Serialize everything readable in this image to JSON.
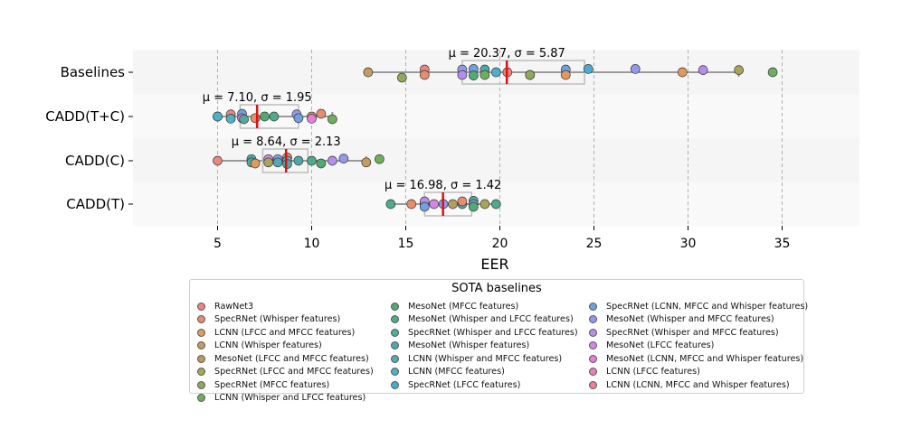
{
  "chart_data": {
    "type": "scatter",
    "xlabel": "EER",
    "xlim": [
      0.5,
      39.0
    ],
    "xticks": [
      5,
      10,
      15,
      20,
      25,
      30,
      35
    ],
    "categories": [
      "Baselines",
      "CADD(T+C)",
      "CADD(C)",
      "CADD(T)"
    ],
    "grid": "x-dashed",
    "groups": [
      {
        "name": "Baselines",
        "stat_label": "μ = 20.37, σ = 5.87",
        "mean": 20.37,
        "std": 5.87,
        "box": {
          "q1": 18.0,
          "q3": 24.5,
          "whisker_low": 13.0,
          "whisker_high": 32.7
        },
        "points": [
          {
            "x": 13.0,
            "c": 4,
            "dy": 0
          },
          {
            "x": 14.8,
            "c": 7,
            "dy": 1
          },
          {
            "x": 16.0,
            "c": 1,
            "dy": -0.5
          },
          {
            "x": 16.0,
            "c": 2,
            "dy": 0.5
          },
          {
            "x": 18.0,
            "c": 17,
            "dy": -0.5
          },
          {
            "x": 18.0,
            "c": 18,
            "dy": 0.5
          },
          {
            "x": 18.6,
            "c": 16,
            "dy": -0.6
          },
          {
            "x": 18.6,
            "c": 9,
            "dy": 0.6
          },
          {
            "x": 19.2,
            "c": 12,
            "dy": -0.5
          },
          {
            "x": 19.2,
            "c": 8,
            "dy": 0.5
          },
          {
            "x": 19.8,
            "c": 14,
            "dy": 0
          },
          {
            "x": 20.4,
            "c": 1,
            "dy": 0
          },
          {
            "x": 21.6,
            "c": 6,
            "dy": 0.5
          },
          {
            "x": 21.6,
            "c": 7,
            "dy": 0.5
          },
          {
            "x": 23.5,
            "c": 16,
            "dy": -0.5
          },
          {
            "x": 23.5,
            "c": 3,
            "dy": 0.5
          },
          {
            "x": 24.7,
            "c": 15,
            "dy": -0.6
          },
          {
            "x": 27.2,
            "c": 17,
            "dy": -0.6
          },
          {
            "x": 29.7,
            "c": 3,
            "dy": 0
          },
          {
            "x": 30.8,
            "c": 18,
            "dy": -0.4
          },
          {
            "x": 32.7,
            "c": 6,
            "dy": -0.4
          },
          {
            "x": 34.5,
            "c": 8,
            "dy": 0
          }
        ]
      },
      {
        "name": "CADD(T+C)",
        "stat_label": "μ = 7.10, σ = 1.95",
        "mean": 7.1,
        "std": 1.95,
        "box": {
          "q1": 6.2,
          "q3": 9.3,
          "whisker_low": 5.0,
          "whisker_high": 11.1
        },
        "points": [
          {
            "x": 5.0,
            "c": 11,
            "dy": 0
          },
          {
            "x": 5.0,
            "c": 14,
            "dy": 0
          },
          {
            "x": 5.7,
            "c": 1,
            "dy": -0.4
          },
          {
            "x": 5.7,
            "c": 14,
            "dy": 0.4
          },
          {
            "x": 6.3,
            "c": 16,
            "dy": -0.5
          },
          {
            "x": 6.3,
            "c": 20,
            "dy": 0.3
          },
          {
            "x": 6.4,
            "c": 11,
            "dy": 0.5
          },
          {
            "x": 7.0,
            "c": 2,
            "dy": 0.3
          },
          {
            "x": 7.5,
            "c": 9,
            "dy": 0
          },
          {
            "x": 8.0,
            "c": 10,
            "dy": 0
          },
          {
            "x": 9.2,
            "c": 17,
            "dy": -0.4
          },
          {
            "x": 9.3,
            "c": 16,
            "dy": 0.3
          },
          {
            "x": 10.0,
            "c": 3,
            "dy": 0
          },
          {
            "x": 10.0,
            "c": 20,
            "dy": 0.4
          },
          {
            "x": 10.5,
            "c": 2,
            "dy": -0.5
          },
          {
            "x": 11.1,
            "c": 8,
            "dy": 0.5
          }
        ]
      },
      {
        "name": "CADD(C)",
        "stat_label": "μ = 8.64, σ = 2.13",
        "mean": 8.64,
        "std": 2.13,
        "box": {
          "q1": 7.4,
          "q3": 9.8,
          "whisker_low": 5.0,
          "whisker_high": 12.9
        },
        "points": [
          {
            "x": 5.0,
            "c": 1,
            "dy": 0
          },
          {
            "x": 6.8,
            "c": 12,
            "dy": -0.3
          },
          {
            "x": 6.8,
            "c": 11,
            "dy": 0.3
          },
          {
            "x": 7.0,
            "c": 3,
            "dy": 0.5
          },
          {
            "x": 7.7,
            "c": 19,
            "dy": -0.3
          },
          {
            "x": 7.7,
            "c": 6,
            "dy": 0.3
          },
          {
            "x": 8.2,
            "c": 17,
            "dy": -0.3
          },
          {
            "x": 8.2,
            "c": 13,
            "dy": 0.3
          },
          {
            "x": 8.7,
            "c": 4,
            "dy": -0.6
          },
          {
            "x": 8.7,
            "c": 16,
            "dy": 0
          },
          {
            "x": 8.7,
            "c": 12,
            "dy": 0.6
          },
          {
            "x": 9.3,
            "c": 12,
            "dy": 0
          },
          {
            "x": 10.0,
            "c": 10,
            "dy": 0
          },
          {
            "x": 10.5,
            "c": 9,
            "dy": 0.5
          },
          {
            "x": 11.1,
            "c": 18,
            "dy": 0
          },
          {
            "x": 11.7,
            "c": 17,
            "dy": -0.4
          },
          {
            "x": 12.9,
            "c": 4,
            "dy": 0.3
          },
          {
            "x": 13.6,
            "c": 8,
            "dy": -0.3
          }
        ]
      },
      {
        "name": "CADD(T)",
        "stat_label": "μ = 16.98, σ = 1.42",
        "mean": 16.98,
        "std": 1.42,
        "box": {
          "q1": 16.0,
          "q3": 18.5,
          "whisker_low": 14.2,
          "whisker_high": 19.8
        },
        "points": [
          {
            "x": 14.2,
            "c": 10,
            "dy": 0
          },
          {
            "x": 15.3,
            "c": 2,
            "dy": 0
          },
          {
            "x": 16.0,
            "c": 3,
            "dy": 0
          },
          {
            "x": 16.0,
            "c": 18,
            "dy": -0.5
          },
          {
            "x": 16.0,
            "c": 16,
            "dy": 0.5
          },
          {
            "x": 16.5,
            "c": 19,
            "dy": 0
          },
          {
            "x": 17.0,
            "c": 17,
            "dy": 0
          },
          {
            "x": 17.5,
            "c": 5,
            "dy": 0
          },
          {
            "x": 18.0,
            "c": 12,
            "dy": 0
          },
          {
            "x": 18.0,
            "c": 2,
            "dy": -0.5
          },
          {
            "x": 18.6,
            "c": 11,
            "dy": -0.6
          },
          {
            "x": 18.6,
            "c": 16,
            "dy": 0
          },
          {
            "x": 18.6,
            "c": 9,
            "dy": 0.5
          },
          {
            "x": 19.2,
            "c": 6,
            "dy": 0
          },
          {
            "x": 19.8,
            "c": 10,
            "dy": 0
          }
        ]
      }
    ],
    "legend": {
      "title": "SOTA baselines",
      "placement": "bottom-center",
      "entries": [
        {
          "label": "RawNet3",
          "color": "#e8867f"
        },
        {
          "label": "SpecRNet (Whisper features)",
          "color": "#e68e6c"
        },
        {
          "label": "LCNN (LFCC and MFCC features)",
          "color": "#e09a5d"
        },
        {
          "label": "LCNN (Whisper features)",
          "color": "#c69b5e"
        },
        {
          "label": "MesoNet (LFCC and MFCC features)",
          "color": "#b79d5b"
        },
        {
          "label": "SpecRNet (LFCC and MFCC features)",
          "color": "#a7a55a"
        },
        {
          "label": "SpecRNet (MFCC features)",
          "color": "#8fa95c"
        },
        {
          "label": "LCNN (Whisper and LFCC features)",
          "color": "#6fad5f"
        },
        {
          "label": "MesoNet (MFCC features)",
          "color": "#50ab72"
        },
        {
          "label": "MesoNet (Whisper and LFCC features)",
          "color": "#4fab8b"
        },
        {
          "label": "SpecRNet (Whisper and LFCC features)",
          "color": "#52aa9c"
        },
        {
          "label": "MesoNet (Whisper features)",
          "color": "#4fa8a7"
        },
        {
          "label": "LCNN (Whisper and MFCC features)",
          "color": "#52aab6"
        },
        {
          "label": "LCNN (MFCC features)",
          "color": "#4eb0c6"
        },
        {
          "label": "SpecRNet (LFCC features)",
          "color": "#4aabd2"
        },
        {
          "label": "SpecRNet (LCNN, MFCC and Whisper features)",
          "color": "#6fa1e0"
        },
        {
          "label": "MesoNet (Whisper and MFCC features)",
          "color": "#9597ec"
        },
        {
          "label": "SpecRNet (Whisper and MFCC features)",
          "color": "#b38eea"
        },
        {
          "label": "MesoNet (LFCC features)",
          "color": "#d386e5"
        },
        {
          "label": "MesoNet (LCNN, MFCC and Whisper features)",
          "color": "#e67ed6"
        },
        {
          "label": "LCNN (LFCC features)",
          "color": "#ea7fb8"
        },
        {
          "label": "LCNN (LCNN, MFCC and Whisper features)",
          "color": "#ec7f99"
        }
      ]
    }
  }
}
